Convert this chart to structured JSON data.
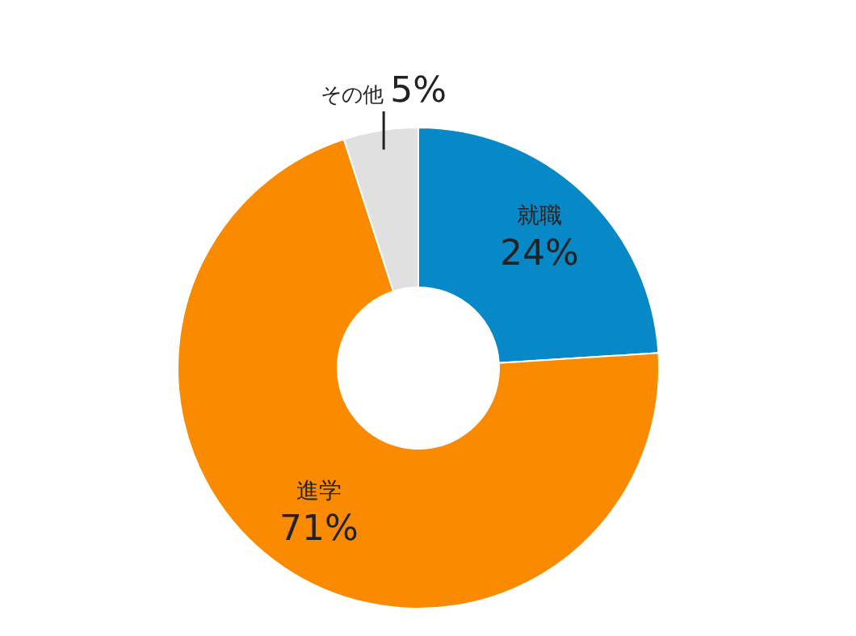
{
  "chart_data": {
    "type": "donut",
    "categories": [
      "就職",
      "進学",
      "その他"
    ],
    "values": [
      24,
      71,
      5
    ],
    "colors": [
      "#0689c6",
      "#fa8a00",
      "#e0e0e0"
    ],
    "value_labels": [
      "24%",
      "71%",
      "5%"
    ],
    "legend": false
  }
}
